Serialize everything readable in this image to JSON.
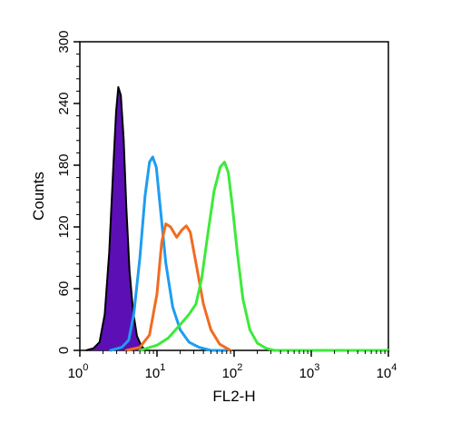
{
  "chart_data": {
    "type": "line",
    "title": "",
    "xlabel": "FL2-H",
    "ylabel": "Counts",
    "x_scale": "log",
    "xlim": [
      1,
      10000
    ],
    "ylim": [
      0,
      300
    ],
    "x_ticks": [
      {
        "base": "10",
        "exp": "0"
      },
      {
        "base": "10",
        "exp": "1"
      },
      {
        "base": "10",
        "exp": "2"
      },
      {
        "base": "10",
        "exp": "3"
      },
      {
        "base": "10",
        "exp": "4"
      }
    ],
    "x_tick_values": [
      1,
      10,
      100,
      1000,
      10000
    ],
    "y_ticks": [
      "0",
      "60",
      "120",
      "180",
      "240",
      "300"
    ],
    "y_tick_values": [
      0,
      60,
      120,
      180,
      240,
      300
    ],
    "grid": false,
    "legend": "none",
    "series": [
      {
        "color": "#5b0fb5",
        "filled": true,
        "points": [
          [
            1.2,
            0
          ],
          [
            1.5,
            2
          ],
          [
            1.8,
            8
          ],
          [
            2.1,
            35
          ],
          [
            2.4,
            95
          ],
          [
            2.7,
            175
          ],
          [
            2.95,
            232
          ],
          [
            3.15,
            256
          ],
          [
            3.4,
            248
          ],
          [
            3.7,
            205
          ],
          [
            4.0,
            140
          ],
          [
            4.4,
            78
          ],
          [
            4.9,
            38
          ],
          [
            5.5,
            14
          ],
          [
            6.3,
            4
          ],
          [
            7.2,
            0
          ]
        ]
      },
      {
        "color": "#1e9df0",
        "filled": false,
        "points": [
          [
            2.5,
            0
          ],
          [
            3.5,
            3
          ],
          [
            4.3,
            10
          ],
          [
            5.0,
            35
          ],
          [
            6.0,
            90
          ],
          [
            7.0,
            150
          ],
          [
            8.0,
            183
          ],
          [
            8.8,
            188
          ],
          [
            9.8,
            178
          ],
          [
            11.0,
            140
          ],
          [
            13.0,
            85
          ],
          [
            16.0,
            42
          ],
          [
            20.0,
            20
          ],
          [
            26.0,
            8
          ],
          [
            35.0,
            3
          ],
          [
            50.0,
            0
          ],
          [
            80.0,
            0
          ]
        ]
      },
      {
        "color": "#f26b21",
        "filled": false,
        "points": [
          [
            4.0,
            0
          ],
          [
            6.0,
            3
          ],
          [
            8.0,
            15
          ],
          [
            10.0,
            55
          ],
          [
            11.5,
            105
          ],
          [
            13.0,
            123
          ],
          [
            15.0,
            120
          ],
          [
            18.0,
            110
          ],
          [
            21.0,
            117
          ],
          [
            24.0,
            121
          ],
          [
            27.0,
            115
          ],
          [
            32.0,
            85
          ],
          [
            40.0,
            45
          ],
          [
            50.0,
            20
          ],
          [
            65.0,
            6
          ],
          [
            90.0,
            0
          ]
        ]
      },
      {
        "color": "#3dea3a",
        "filled": false,
        "points": [
          [
            6.0,
            0
          ],
          [
            10.0,
            5
          ],
          [
            14.0,
            12
          ],
          [
            20.0,
            25
          ],
          [
            26.0,
            35
          ],
          [
            32.0,
            45
          ],
          [
            38.0,
            70
          ],
          [
            45.0,
            110
          ],
          [
            55.0,
            155
          ],
          [
            66.0,
            178
          ],
          [
            75.0,
            183
          ],
          [
            84.0,
            173
          ],
          [
            95.0,
            140
          ],
          [
            110.0,
            95
          ],
          [
            130.0,
            50
          ],
          [
            160.0,
            20
          ],
          [
            200.0,
            7
          ],
          [
            260.0,
            2
          ],
          [
            330.0,
            0
          ],
          [
            10000.0,
            0
          ]
        ]
      }
    ]
  }
}
